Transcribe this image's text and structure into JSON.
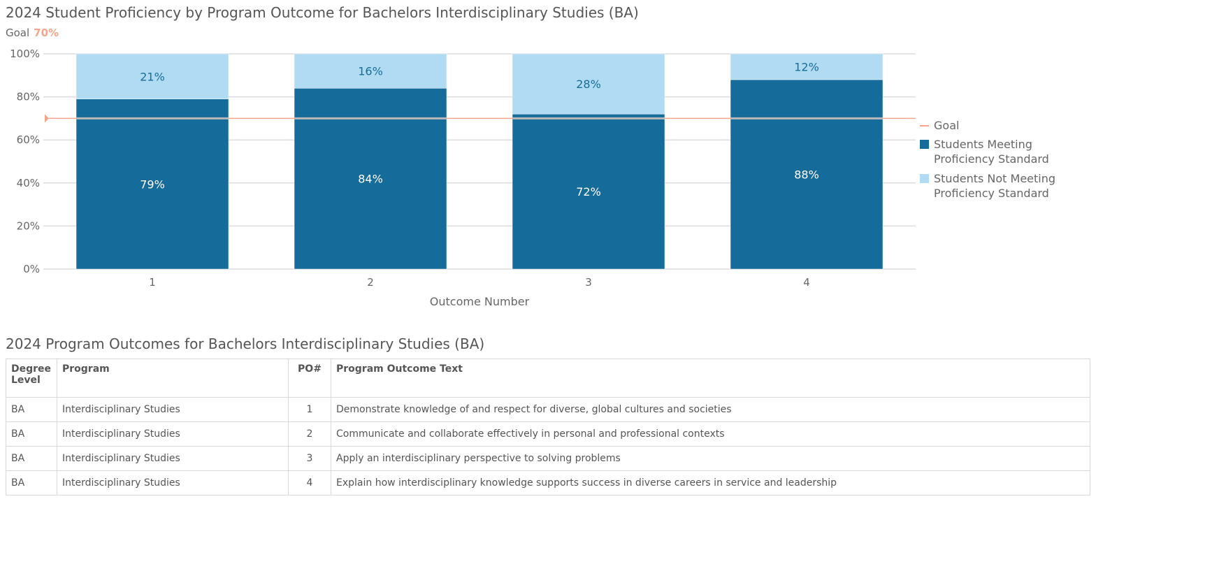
{
  "chart_data": {
    "type": "bar",
    "stacked": true,
    "title": "2024 Student Proficiency by Program Outcome for Bachelors Interdisciplinary Studies (BA)",
    "goal_label": "Goal",
    "goal_value_text": "70%",
    "goal": 70,
    "xlabel": "Outcome Number",
    "ylabel": "",
    "ylim": [
      0,
      100
    ],
    "yticks": [
      "0%",
      "20%",
      "40%",
      "60%",
      "80%",
      "100%"
    ],
    "categories": [
      "1",
      "2",
      "3",
      "4"
    ],
    "series": [
      {
        "name": "Students Meeting Proficiency Standard",
        "values": [
          79,
          84,
          72,
          88
        ],
        "labels": [
          "79%",
          "84%",
          "72%",
          "88%"
        ],
        "color": "#156b99"
      },
      {
        "name": "Students Not Meeting Proficiency Standard",
        "values": [
          21,
          16,
          28,
          12
        ],
        "labels": [
          "21%",
          "16%",
          "28%",
          "12%"
        ],
        "color": "#b0dbf3"
      }
    ],
    "goal_color": "#f4a58a",
    "legend": {
      "placement": "right",
      "items": [
        "Goal",
        "Students Meeting Proficiency Standard",
        "Students Not Meeting Proficiency Standard"
      ]
    },
    "grid": true
  },
  "table": {
    "title": "2024 Program Outcomes for Bachelors Interdisciplinary Studies (BA)",
    "headers": [
      "Degree Level",
      "Program",
      "PO#",
      "Program Outcome Text"
    ],
    "rows": [
      [
        "BA",
        "Interdisciplinary Studies",
        "1",
        "Demonstrate knowledge of and respect for diverse, global cultures and societies"
      ],
      [
        "BA",
        "Interdisciplinary Studies",
        "2",
        "Communicate and collaborate effectively in personal and professional contexts"
      ],
      [
        "BA",
        "Interdisciplinary Studies",
        "3",
        "Apply an interdisciplinary perspective to solving problems"
      ],
      [
        "BA",
        "Interdisciplinary Studies",
        "4",
        "Explain how interdisciplinary knowledge supports success in diverse careers in service and leadership"
      ]
    ]
  }
}
